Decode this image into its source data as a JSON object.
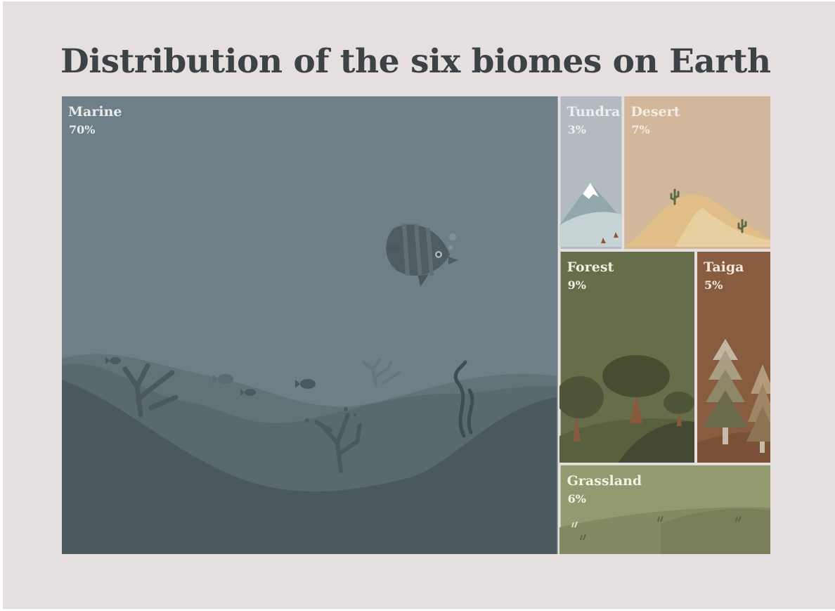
{
  "chart_data": {
    "type": "treemap",
    "title": "Distribution of the six biomes on Earth",
    "unit": "%",
    "items": [
      {
        "name": "Marine",
        "value": 70,
        "color": "#6e7f88",
        "label_color": "#eaeaea"
      },
      {
        "name": "Tundra",
        "value": 3,
        "color": "#b2bcc0",
        "label_color": "#eceeef"
      },
      {
        "name": "Desert",
        "value": 7,
        "color": "#d2b79a",
        "label_color": "#f3ece4"
      },
      {
        "name": "Forest",
        "value": 9,
        "color": "#666d4a",
        "label_color": "#f0eedf"
      },
      {
        "name": "Taiga",
        "value": 5,
        "color": "#875c3f",
        "label_color": "#f4e9df"
      },
      {
        "name": "Grassland",
        "value": 6,
        "color": "#949a6f",
        "label_color": "#f2f1e4"
      }
    ]
  },
  "colors": {
    "background": "#e5dfdf",
    "title": "#3c4246"
  },
  "icons": [
    "fish-icon",
    "coral-icon",
    "seaweed-icon",
    "mountain-icon",
    "cactus-icon",
    "tree-icon",
    "pine-tree-icon",
    "grass-tuft-icon"
  ]
}
